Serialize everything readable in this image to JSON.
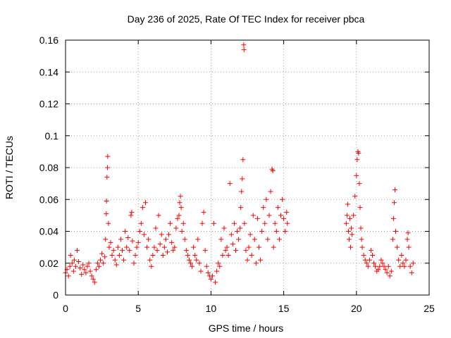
{
  "chart_data": {
    "type": "scatter",
    "title": "Day 236 of 2025, Rate Of TEC Index for receiver pbca",
    "xlabel": "GPS time / hours",
    "ylabel": "ROTI / TECUs",
    "xlim": [
      0,
      25
    ],
    "ylim": [
      0,
      0.16
    ],
    "x_ticks": [
      0,
      5,
      10,
      15,
      20,
      25
    ],
    "y_ticks": [
      0,
      0.02,
      0.04,
      0.06,
      0.08,
      0.1,
      0.12,
      0.14,
      0.16
    ],
    "x_tick_labels": [
      "0",
      "5",
      "10",
      "15",
      "20",
      "25"
    ],
    "y_tick_labels": [
      "0",
      "0.02",
      "0.04",
      "0.06",
      "0.08",
      "0.1",
      "0.12",
      "0.14",
      "0.16"
    ],
    "grid": true,
    "marker": "+",
    "color": "#ff0000",
    "series": [
      {
        "name": "ROTI",
        "points": [
          [
            0.0,
            0.014
          ],
          [
            0.1,
            0.016
          ],
          [
            0.2,
            0.012
          ],
          [
            0.3,
            0.018
          ],
          [
            0.35,
            0.025
          ],
          [
            0.45,
            0.02
          ],
          [
            0.55,
            0.015
          ],
          [
            0.6,
            0.022
          ],
          [
            0.7,
            0.018
          ],
          [
            0.8,
            0.028
          ],
          [
            0.9,
            0.021
          ],
          [
            1.0,
            0.017
          ],
          [
            1.1,
            0.013
          ],
          [
            1.2,
            0.019
          ],
          [
            1.3,
            0.016
          ],
          [
            1.4,
            0.014
          ],
          [
            1.5,
            0.018
          ],
          [
            1.6,
            0.02
          ],
          [
            1.7,
            0.015
          ],
          [
            1.8,
            0.012
          ],
          [
            1.9,
            0.01
          ],
          [
            2.0,
            0.008
          ],
          [
            2.1,
            0.016
          ],
          [
            2.2,
            0.02
          ],
          [
            2.3,
            0.018
          ],
          [
            2.4,
            0.022
          ],
          [
            2.5,
            0.026
          ],
          [
            2.6,
            0.02
          ],
          [
            2.7,
            0.024
          ],
          [
            2.75,
            0.035
          ],
          [
            2.8,
            0.051
          ],
          [
            2.82,
            0.059
          ],
          [
            2.85,
            0.074
          ],
          [
            2.88,
            0.08
          ],
          [
            2.9,
            0.087
          ],
          [
            2.95,
            0.045
          ],
          [
            3.0,
            0.03
          ],
          [
            3.1,
            0.033
          ],
          [
            3.2,
            0.025
          ],
          [
            3.3,
            0.028
          ],
          [
            3.4,
            0.022
          ],
          [
            3.5,
            0.019
          ],
          [
            3.6,
            0.03
          ],
          [
            3.7,
            0.025
          ],
          [
            3.8,
            0.035
          ],
          [
            3.9,
            0.028
          ],
          [
            4.0,
            0.022
          ],
          [
            4.1,
            0.04
          ],
          [
            4.2,
            0.03
          ],
          [
            4.3,
            0.036
          ],
          [
            4.4,
            0.028
          ],
          [
            4.5,
            0.05
          ],
          [
            4.55,
            0.052
          ],
          [
            4.6,
            0.034
          ],
          [
            4.7,
            0.02
          ],
          [
            4.8,
            0.025
          ],
          [
            4.9,
            0.03
          ],
          [
            5.0,
            0.033
          ],
          [
            5.1,
            0.04
          ],
          [
            5.2,
            0.045
          ],
          [
            5.3,
            0.055
          ],
          [
            5.4,
            0.038
          ],
          [
            5.5,
            0.058
          ],
          [
            5.6,
            0.03
          ],
          [
            5.7,
            0.035
          ],
          [
            5.8,
            0.022
          ],
          [
            5.9,
            0.018
          ],
          [
            6.0,
            0.025
          ],
          [
            6.1,
            0.03
          ],
          [
            6.2,
            0.042
          ],
          [
            6.3,
            0.028
          ],
          [
            6.4,
            0.05
          ],
          [
            6.5,
            0.032
          ],
          [
            6.6,
            0.038
          ],
          [
            6.7,
            0.025
          ],
          [
            6.8,
            0.03
          ],
          [
            6.9,
            0.035
          ],
          [
            7.0,
            0.027
          ],
          [
            7.1,
            0.038
          ],
          [
            7.2,
            0.045
          ],
          [
            7.3,
            0.033
          ],
          [
            7.4,
            0.028
          ],
          [
            7.5,
            0.03
          ],
          [
            7.6,
            0.042
          ],
          [
            7.7,
            0.048
          ],
          [
            7.8,
            0.05
          ],
          [
            7.85,
            0.058
          ],
          [
            7.9,
            0.062
          ],
          [
            7.95,
            0.055
          ],
          [
            8.0,
            0.04
          ],
          [
            8.1,
            0.045
          ],
          [
            8.2,
            0.035
          ],
          [
            8.3,
            0.028
          ],
          [
            8.4,
            0.025
          ],
          [
            8.5,
            0.022
          ],
          [
            8.6,
            0.02
          ],
          [
            8.7,
            0.018
          ],
          [
            8.8,
            0.03
          ],
          [
            8.9,
            0.025
          ],
          [
            9.0,
            0.022
          ],
          [
            9.1,
            0.035
          ],
          [
            9.2,
            0.02
          ],
          [
            9.3,
            0.015
          ],
          [
            9.4,
            0.045
          ],
          [
            9.5,
            0.052
          ],
          [
            9.6,
            0.028
          ],
          [
            9.7,
            0.018
          ],
          [
            9.8,
            0.014
          ],
          [
            9.9,
            0.012
          ],
          [
            10.0,
            0.01
          ],
          [
            10.1,
            0.012
          ],
          [
            10.2,
            0.045
          ],
          [
            10.3,
            0.008
          ],
          [
            10.4,
            0.015
          ],
          [
            10.5,
            0.02
          ],
          [
            10.6,
            0.018
          ],
          [
            10.7,
            0.035
          ],
          [
            10.8,
            0.025
          ],
          [
            10.9,
            0.042
          ],
          [
            11.0,
            0.028
          ],
          [
            11.1,
            0.03
          ],
          [
            11.2,
            0.025
          ],
          [
            11.3,
            0.07
          ],
          [
            11.4,
            0.038
          ],
          [
            11.5,
            0.032
          ],
          [
            11.6,
            0.045
          ],
          [
            11.7,
            0.028
          ],
          [
            11.8,
            0.04
          ],
          [
            11.9,
            0.035
          ],
          [
            12.0,
            0.042
          ],
          [
            12.05,
            0.055
          ],
          [
            12.1,
            0.065
          ],
          [
            12.15,
            0.073
          ],
          [
            12.2,
            0.085
          ],
          [
            12.25,
            0.157
          ],
          [
            12.27,
            0.154
          ],
          [
            12.3,
            0.045
          ],
          [
            12.4,
            0.028
          ],
          [
            12.5,
            0.022
          ],
          [
            12.6,
            0.03
          ],
          [
            12.7,
            0.038
          ],
          [
            12.8,
            0.025
          ],
          [
            12.9,
            0.05
          ],
          [
            13.0,
            0.035
          ],
          [
            13.1,
            0.02
          ],
          [
            13.2,
            0.048
          ],
          [
            13.3,
            0.03
          ],
          [
            13.4,
            0.022
          ],
          [
            13.5,
            0.04
          ],
          [
            13.6,
            0.055
          ],
          [
            13.7,
            0.045
          ],
          [
            13.8,
            0.06
          ],
          [
            13.9,
            0.035
          ],
          [
            14.0,
            0.05
          ],
          [
            14.1,
            0.065
          ],
          [
            14.2,
            0.079
          ],
          [
            14.25,
            0.078
          ],
          [
            14.3,
            0.03
          ],
          [
            14.4,
            0.045
          ],
          [
            14.5,
            0.04
          ],
          [
            14.6,
            0.055
          ],
          [
            14.7,
            0.035
          ],
          [
            14.8,
            0.05
          ],
          [
            14.9,
            0.06
          ],
          [
            15.0,
            0.048
          ],
          [
            15.1,
            0.04
          ],
          [
            15.2,
            0.052
          ],
          [
            15.25,
            0.045
          ],
          [
            19.3,
            0.045
          ],
          [
            19.35,
            0.05
          ],
          [
            19.4,
            0.057
          ],
          [
            19.45,
            0.04
          ],
          [
            19.5,
            0.035
          ],
          [
            19.55,
            0.048
          ],
          [
            19.6,
            0.03
          ],
          [
            19.65,
            0.042
          ],
          [
            19.7,
            0.038
          ],
          [
            19.8,
            0.05
          ],
          [
            19.9,
            0.062
          ],
          [
            20.0,
            0.075
          ],
          [
            20.05,
            0.085
          ],
          [
            20.1,
            0.09
          ],
          [
            20.15,
            0.089
          ],
          [
            20.2,
            0.07
          ],
          [
            20.25,
            0.055
          ],
          [
            20.3,
            0.042
          ],
          [
            20.35,
            0.035
          ],
          [
            20.4,
            0.03
          ],
          [
            20.5,
            0.025
          ],
          [
            20.6,
            0.022
          ],
          [
            20.7,
            0.02
          ],
          [
            20.8,
            0.018
          ],
          [
            20.9,
            0.022
          ],
          [
            21.0,
            0.028
          ],
          [
            21.1,
            0.025
          ],
          [
            21.2,
            0.02
          ],
          [
            21.3,
            0.018
          ],
          [
            21.4,
            0.015
          ],
          [
            21.5,
            0.016
          ],
          [
            21.6,
            0.018
          ],
          [
            21.7,
            0.022
          ],
          [
            21.8,
            0.02
          ],
          [
            21.9,
            0.018
          ],
          [
            22.0,
            0.016
          ],
          [
            22.1,
            0.014
          ],
          [
            22.2,
            0.018
          ],
          [
            22.3,
            0.012
          ],
          [
            22.4,
            0.015
          ],
          [
            22.5,
            0.035
          ],
          [
            22.55,
            0.048
          ],
          [
            22.6,
            0.058
          ],
          [
            22.65,
            0.066
          ],
          [
            22.7,
            0.04
          ],
          [
            22.8,
            0.03
          ],
          [
            22.9,
            0.022
          ],
          [
            23.0,
            0.018
          ],
          [
            23.1,
            0.025
          ],
          [
            23.2,
            0.02
          ],
          [
            23.3,
            0.018
          ],
          [
            23.4,
            0.022
          ],
          [
            23.5,
            0.035
          ],
          [
            23.55,
            0.039
          ],
          [
            23.6,
            0.03
          ],
          [
            23.7,
            0.018
          ],
          [
            23.8,
            0.014
          ],
          [
            23.9,
            0.02
          ]
        ]
      }
    ]
  }
}
